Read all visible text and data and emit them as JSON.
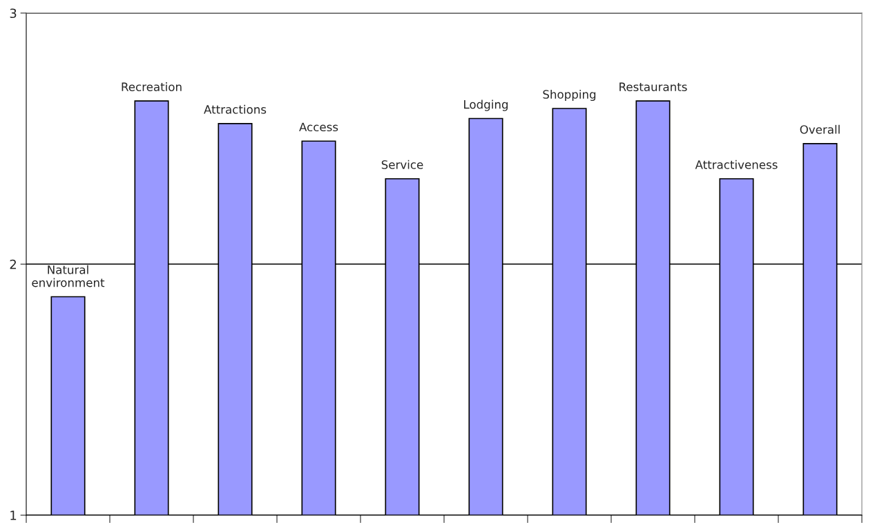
{
  "chart_data": {
    "type": "bar",
    "categories": [
      "Natural\nenvironment",
      "Recreation",
      "Attractions",
      "Access",
      "Service",
      "Lodging",
      "Shopping",
      "Restaurants",
      "Attractiveness",
      "Overall"
    ],
    "values": [
      1.87,
      2.65,
      2.56,
      2.49,
      2.34,
      2.58,
      2.62,
      2.65,
      2.34,
      2.48
    ],
    "color": "#9999ff",
    "ylim": [
      1,
      3
    ],
    "yticks": [
      1,
      2,
      3
    ],
    "grid": "y",
    "tick_labels": "y"
  }
}
